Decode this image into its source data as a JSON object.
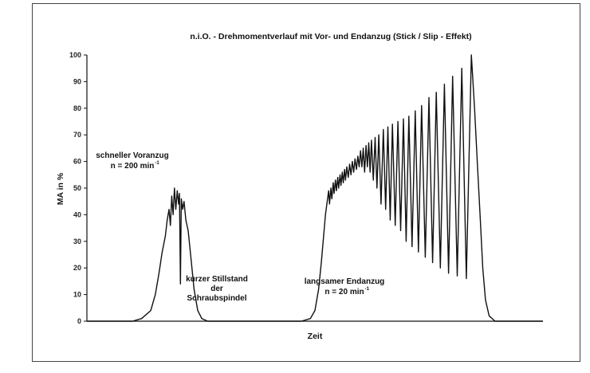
{
  "chart_data": {
    "type": "line",
    "title": "n.i.O. - Drehmomentverlauf mit Vor- und Endanzug (Stick / Slip - Effekt)",
    "xlabel": "Zeit",
    "ylabel": "MA in %",
    "ylim": [
      0,
      100
    ],
    "yticks": [
      "0",
      "10",
      "20",
      "30",
      "40",
      "50",
      "60",
      "70",
      "80",
      "90",
      "100"
    ],
    "xlim": [
      0,
      100
    ],
    "grid": false,
    "series": [
      {
        "points": [
          [
            0,
            0
          ],
          [
            10,
            0
          ],
          [
            12,
            1
          ],
          [
            14,
            4
          ],
          [
            15,
            10
          ],
          [
            15.8,
            18
          ],
          [
            16.5,
            26
          ],
          [
            17.2,
            32
          ],
          [
            17.6,
            38
          ],
          [
            18,
            42
          ],
          [
            18.3,
            36
          ],
          [
            18.6,
            47
          ],
          [
            18.9,
            40
          ],
          [
            19.2,
            50
          ],
          [
            19.5,
            42
          ],
          [
            19.8,
            49
          ],
          [
            20.1,
            44
          ],
          [
            20.3,
            48
          ],
          [
            20.5,
            14
          ],
          [
            20.7,
            46
          ],
          [
            21,
            42
          ],
          [
            21.3,
            45
          ],
          [
            21.7,
            38
          ],
          [
            22.2,
            34
          ],
          [
            22.8,
            24
          ],
          [
            23.5,
            12
          ],
          [
            24.3,
            4
          ],
          [
            25.2,
            1
          ],
          [
            26.5,
            0
          ],
          [
            47,
            0
          ],
          [
            49,
            1
          ],
          [
            50,
            4
          ],
          [
            50.8,
            12
          ],
          [
            51.4,
            22
          ],
          [
            51.9,
            32
          ],
          [
            52.3,
            40
          ],
          [
            52.7,
            45
          ],
          [
            53.0,
            49
          ],
          [
            53.2,
            44
          ],
          [
            53.5,
            50
          ],
          [
            53.7,
            46
          ],
          [
            54,
            52
          ],
          [
            54.2,
            48
          ],
          [
            54.5,
            53
          ],
          [
            54.7,
            49
          ],
          [
            55,
            54
          ],
          [
            55.2,
            50
          ],
          [
            55.5,
            55
          ],
          [
            55.7,
            51
          ],
          [
            56,
            56
          ],
          [
            56.2,
            52
          ],
          [
            56.5,
            57
          ],
          [
            56.7,
            53
          ],
          [
            57,
            58
          ],
          [
            57.3,
            54
          ],
          [
            57.6,
            59
          ],
          [
            57.9,
            55
          ],
          [
            58.2,
            60
          ],
          [
            58.5,
            56
          ],
          [
            58.8,
            61
          ],
          [
            59.1,
            57
          ],
          [
            59.4,
            62
          ],
          [
            59.7,
            58
          ],
          [
            60,
            64
          ],
          [
            60.3,
            58
          ],
          [
            60.6,
            65
          ],
          [
            60.9,
            56
          ],
          [
            61.2,
            66
          ],
          [
            61.5,
            58
          ],
          [
            61.8,
            67
          ],
          [
            62.1,
            56
          ],
          [
            62.4,
            68
          ],
          [
            62.8,
            53
          ],
          [
            63.2,
            69
          ],
          [
            63.6,
            50
          ],
          [
            64,
            70
          ],
          [
            64.5,
            44
          ],
          [
            65,
            72
          ],
          [
            65.5,
            42
          ],
          [
            66,
            73
          ],
          [
            66.5,
            38
          ],
          [
            67,
            74
          ],
          [
            67.6,
            36
          ],
          [
            68.2,
            75
          ],
          [
            68.8,
            34
          ],
          [
            69.4,
            76
          ],
          [
            70.0,
            30
          ],
          [
            70.6,
            77
          ],
          [
            71.3,
            28
          ],
          [
            72.0,
            79
          ],
          [
            72.7,
            26
          ],
          [
            73.4,
            81
          ],
          [
            74.2,
            24
          ],
          [
            75.0,
            84
          ],
          [
            75.8,
            22
          ],
          [
            76.6,
            86
          ],
          [
            77.5,
            20
          ],
          [
            78.4,
            89
          ],
          [
            79.3,
            18
          ],
          [
            80.2,
            92
          ],
          [
            81.2,
            17
          ],
          [
            82.2,
            95
          ],
          [
            83.2,
            16
          ],
          [
            84.3,
            100
          ],
          [
            85.0,
            80
          ],
          [
            85.6,
            60
          ],
          [
            86.2,
            40
          ],
          [
            86.8,
            20
          ],
          [
            87.4,
            8
          ],
          [
            88.2,
            2
          ],
          [
            89.5,
            0
          ],
          [
            100,
            0
          ]
        ]
      }
    ],
    "annotations": [
      {
        "lines": [
          "schneller Voranzug",
          "n = 200 min"
        ],
        "sup": "-1"
      },
      {
        "lines": [
          "kurzer Stillstand",
          "der",
          "Schraubspindel"
        ],
        "sup": ""
      },
      {
        "lines": [
          "langsamer Endanzug",
          "n = 20 min"
        ],
        "sup": "-1"
      }
    ]
  }
}
